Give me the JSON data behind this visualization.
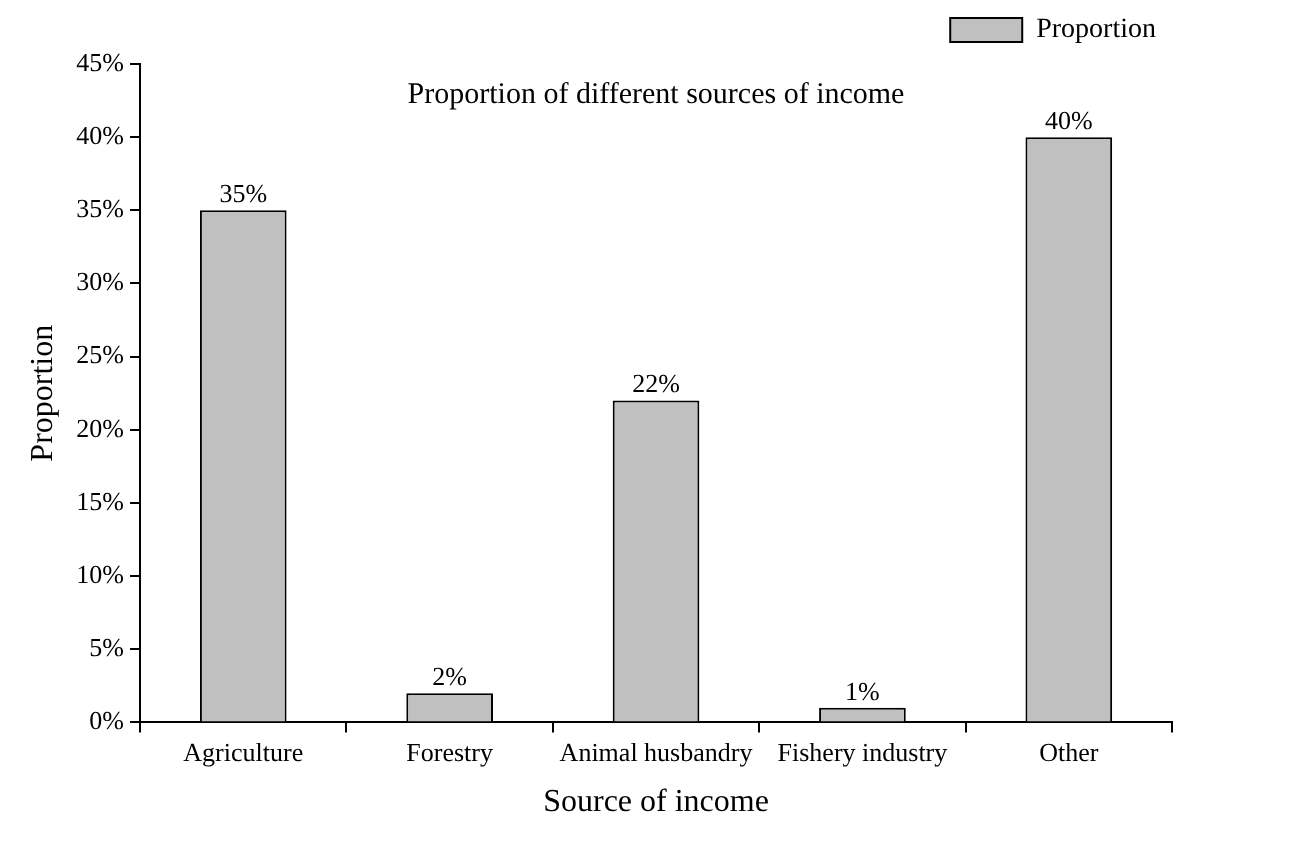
{
  "chart_data": {
    "type": "bar",
    "title": "Proportion of different sources of income",
    "xlabel": "Source of income",
    "ylabel": "Proportion",
    "categories": [
      "Agriculture",
      "Forestry",
      "Animal husbandry",
      "Fishery industry",
      "Other"
    ],
    "series": [
      {
        "name": "Proportion",
        "color": "#c0c0c0",
        "values": [
          35,
          2,
          22,
          1,
          40
        ],
        "value_labels": [
          "35%",
          "2%",
          "22%",
          "1%",
          "40%"
        ]
      }
    ],
    "ylim": [
      0,
      45
    ],
    "yticks": [
      {
        "value": 0,
        "label": "0%"
      },
      {
        "value": 5,
        "label": "5%"
      },
      {
        "value": 10,
        "label": "10%"
      },
      {
        "value": 15,
        "label": "15%"
      },
      {
        "value": 20,
        "label": "20%"
      },
      {
        "value": 25,
        "label": "25%"
      },
      {
        "value": 30,
        "label": "30%"
      },
      {
        "value": 35,
        "label": "35%"
      },
      {
        "value": 40,
        "label": "40%"
      },
      {
        "value": 45,
        "label": "45%"
      }
    ],
    "grid": false,
    "legend": "top right"
  }
}
